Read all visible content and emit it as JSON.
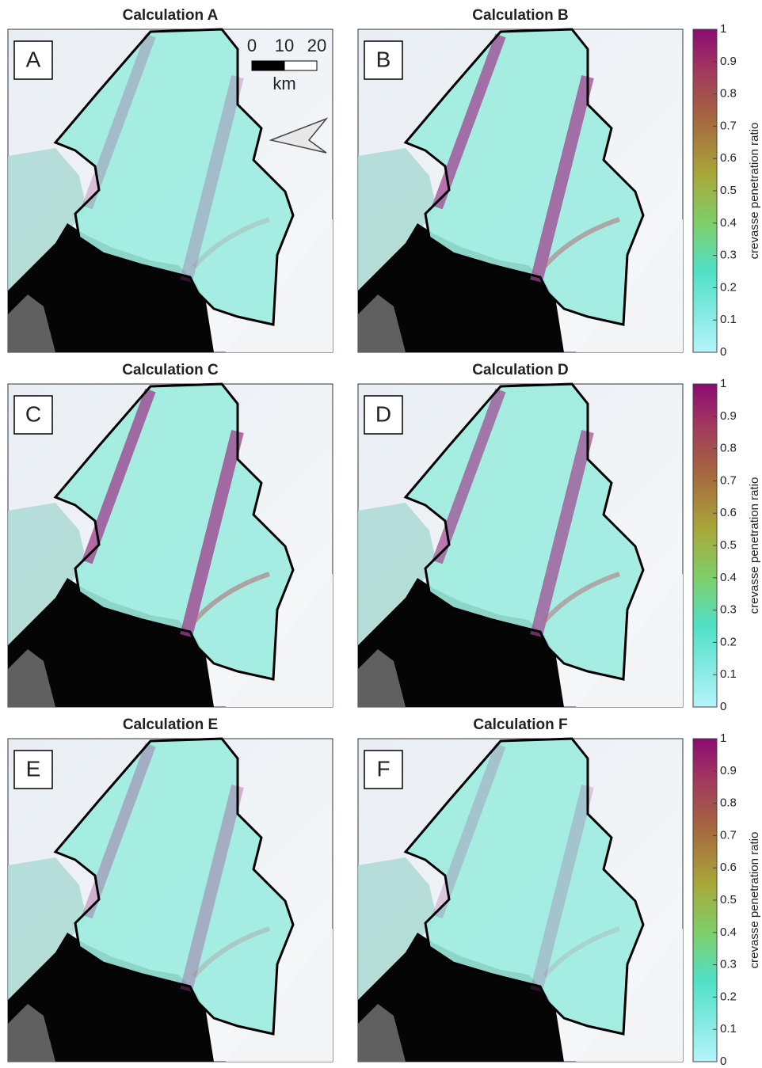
{
  "panels": [
    {
      "title": "Calculation A",
      "letter": "A"
    },
    {
      "title": "Calculation B",
      "letter": "B"
    },
    {
      "title": "Calculation C",
      "letter": "C"
    },
    {
      "title": "Calculation D",
      "letter": "D"
    },
    {
      "title": "Calculation E",
      "letter": "E"
    },
    {
      "title": "Calculation F",
      "letter": "F"
    }
  ],
  "colorbar": {
    "label": "crevasse penetration ratio",
    "lim": [
      0,
      1
    ],
    "ticks": [
      0,
      0.1,
      0.2,
      0.3,
      0.4,
      0.5,
      0.6,
      0.7,
      0.8,
      0.9,
      1
    ]
  },
  "scale_bar": {
    "ticks": [
      0,
      10,
      20
    ],
    "unit": "km"
  }
}
